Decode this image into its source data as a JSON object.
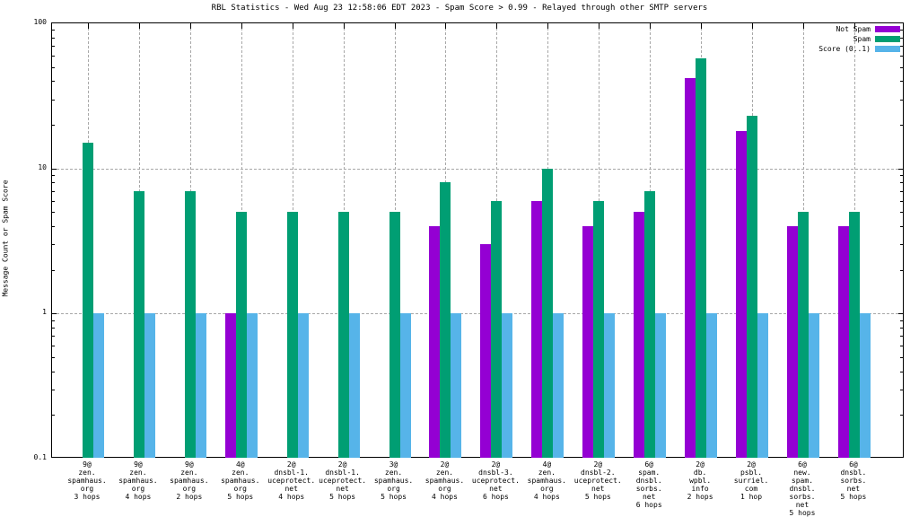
{
  "chart_data": {
    "type": "bar",
    "title": "RBL Statistics - Wed Aug 23 12:58:06 EDT 2023 - Spam Score > 0.99 - Relayed through other SMTP servers",
    "ylabel": "Message Count or Spam Score",
    "y_scale": "log",
    "ylim": [
      0.1,
      100
    ],
    "ytick_labels": [
      "100",
      "10",
      "1",
      "0.1"
    ],
    "grid": true,
    "legend_position": "top-right-inside",
    "grid_color": "#a8a8a8",
    "background_color": "#ffffff",
    "categories": [
      [
        "9@",
        "zen.",
        "spamhaus.",
        "org",
        "3 hops"
      ],
      [
        "9@",
        "zen.",
        "spamhaus.",
        "org",
        "4 hops"
      ],
      [
        "9@",
        "zen.",
        "spamhaus.",
        "org",
        "2 hops"
      ],
      [
        "4@",
        "zen.",
        "spamhaus.",
        "org",
        "5 hops"
      ],
      [
        "2@",
        "dnsbl-1.",
        "uceprotect.",
        "net",
        "4 hops"
      ],
      [
        "2@",
        "dnsbl-1.",
        "uceprotect.",
        "net",
        "5 hops"
      ],
      [
        "3@",
        "zen.",
        "spamhaus.",
        "org",
        "5 hops"
      ],
      [
        "2@",
        "zen.",
        "spamhaus.",
        "org",
        "4 hops"
      ],
      [
        "2@",
        "dnsbl-3.",
        "uceprotect.",
        "net",
        "6 hops"
      ],
      [
        "4@",
        "zen.",
        "spamhaus.",
        "org",
        "4 hops"
      ],
      [
        "2@",
        "dnsbl-2.",
        "uceprotect.",
        "net",
        "5 hops"
      ],
      [
        "6@",
        "spam.",
        "dnsbl.",
        "sorbs.",
        "net",
        "6 hops"
      ],
      [
        "2@",
        "db.",
        "wpbl.",
        "info",
        "2 hops"
      ],
      [
        "2@",
        "psbl.",
        "surriel.",
        "com",
        "1 hop"
      ],
      [
        "6@",
        "new.",
        "spam.",
        "dnsbl.",
        "sorbs.",
        "net",
        "5 hops"
      ],
      [
        "6@",
        "dnsbl.",
        "sorbs.",
        "net",
        "5 hops"
      ]
    ],
    "series": [
      {
        "name": "Not Spam",
        "color": "#9400d3",
        "values": [
          0,
          0,
          0,
          1,
          0,
          0,
          0,
          4,
          3,
          6,
          4,
          5,
          42,
          18,
          4,
          4
        ]
      },
      {
        "name": "Spam",
        "color": "#009e73",
        "values": [
          15,
          7,
          7,
          5,
          5,
          5,
          5,
          8,
          6,
          10,
          6,
          7,
          57,
          23,
          5,
          5
        ]
      },
      {
        "name": "Score (0..1)",
        "color": "#56b4e9",
        "values": [
          1,
          1,
          1,
          1,
          1,
          1,
          1,
          1,
          1,
          1,
          1,
          1,
          1,
          1,
          1,
          1
        ]
      }
    ]
  }
}
